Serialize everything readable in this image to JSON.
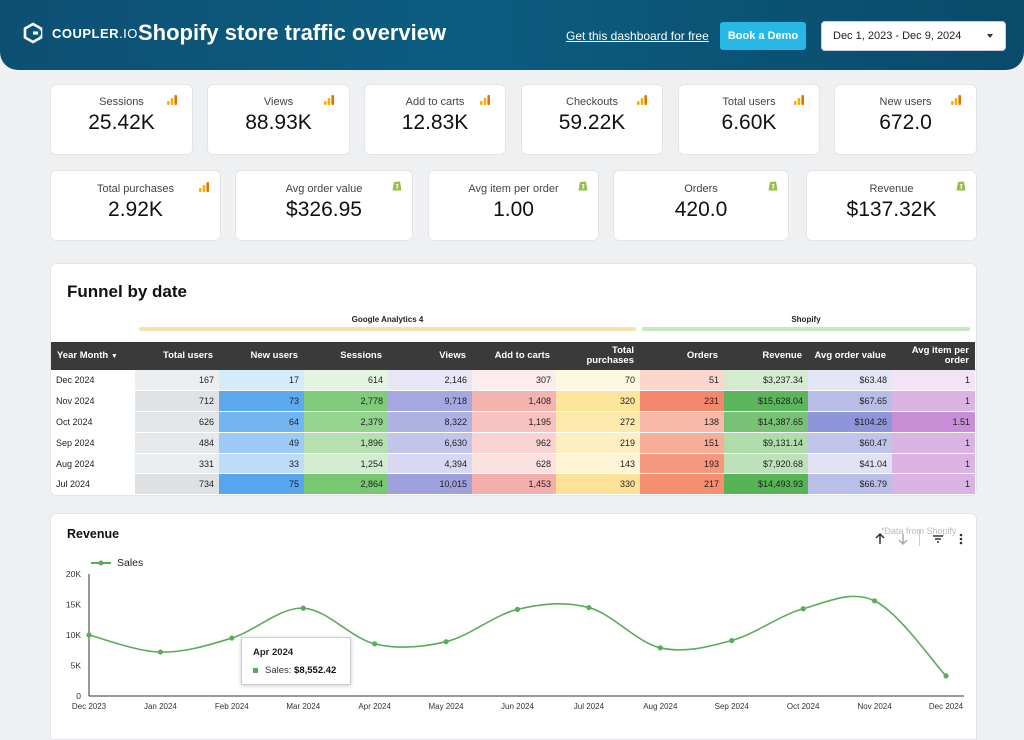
{
  "header": {
    "logo_brand": "COUPLER",
    "logo_suffix": ".IO",
    "title": "Shopify store traffic overview",
    "free_link": "Get this dashboard for free",
    "demo_button": "Book a Demo",
    "date_range": "Dec 1, 2023 - Dec 9, 2024"
  },
  "colors": {
    "accent": "#27b8e6",
    "header_bg": "#0b5d80",
    "line": "#5aab5a",
    "ga_bar": "#f5e3a8",
    "shopify_bar": "#c7e6c4"
  },
  "kpis_row1": [
    {
      "label": "Sessions",
      "value": "25.42K",
      "source": "ga-icon"
    },
    {
      "label": "Views",
      "value": "88.93K",
      "source": "ga-icon"
    },
    {
      "label": "Add to carts",
      "value": "12.83K",
      "source": "ga-icon"
    },
    {
      "label": "Checkouts",
      "value": "59.22K",
      "source": "ga-icon"
    },
    {
      "label": "Total users",
      "value": "6.60K",
      "source": "ga-icon"
    },
    {
      "label": "New users",
      "value": "672.0",
      "source": "ga-icon"
    }
  ],
  "kpis_row2": [
    {
      "label": "Total purchases",
      "value": "2.92K",
      "source": "ga-icon"
    },
    {
      "label": "Avg order value",
      "value": "$326.95",
      "source": "shopify-icon"
    },
    {
      "label": "Avg item per order",
      "value": "1.00",
      "source": "shopify-icon"
    },
    {
      "label": "Orders",
      "value": "420.0",
      "source": "shopify-icon"
    },
    {
      "label": "Revenue",
      "value": "$137.32K",
      "source": "shopify-icon"
    }
  ],
  "funnel": {
    "title": "Funnel by date",
    "group_ga": "Google Analytics 4",
    "group_shopify": "Shopify",
    "columns": [
      "Year Month",
      "Total users",
      "New users",
      "Sessions",
      "Views",
      "Add to carts",
      "Total purchases",
      "Orders",
      "Revenue",
      "Avg order value",
      "Avg item per order"
    ],
    "rows": [
      [
        "Dec 2024",
        "167",
        "17",
        "614",
        "2,146",
        "307",
        "70",
        "51",
        "$3,237.34",
        "$63.48",
        "1"
      ],
      [
        "Nov 2024",
        "712",
        "73",
        "2,778",
        "9,718",
        "1,408",
        "320",
        "231",
        "$15,628.04",
        "$67.65",
        "1"
      ],
      [
        "Oct 2024",
        "626",
        "64",
        "2,379",
        "8,322",
        "1,195",
        "272",
        "138",
        "$14,387.65",
        "$104.26",
        "1.51"
      ],
      [
        "Sep 2024",
        "484",
        "49",
        "1,896",
        "6,630",
        "962",
        "219",
        "151",
        "$9,131.14",
        "$60.47",
        "1"
      ],
      [
        "Aug 2024",
        "331",
        "33",
        "1,254",
        "4,394",
        "628",
        "143",
        "193",
        "$7,920.68",
        "$41.04",
        "1"
      ],
      [
        "Jul 2024",
        "734",
        "75",
        "2,864",
        "10,015",
        "1,453",
        "330",
        "217",
        "$14,493.93",
        "$66.79",
        "1"
      ]
    ],
    "cell_colors": [
      [
        "#ffffff",
        "#eceff1",
        "#d6ebfa",
        "#e4f4e2",
        "#e6e6f6",
        "#fceceb",
        "#fff8e0",
        "#fbd6cd",
        "#d3ecd0",
        "#e3e6f5",
        "#f4e3f5"
      ],
      [
        "#ffffff",
        "#dfe3e6",
        "#5da9ee",
        "#7fcb7a",
        "#a5a7e0",
        "#f5b3b0",
        "#fde59c",
        "#f5886c",
        "#5bb55a",
        "#b8bde8",
        "#dcb4e3"
      ],
      [
        "#ffffff",
        "#e2e6e9",
        "#73b5f0",
        "#93d48f",
        "#b0b2e4",
        "#f7c2bf",
        "#fde9ac",
        "#f9b9a8",
        "#79c175",
        "#8e95d9",
        "#c98ed8"
      ],
      [
        "#ffffff",
        "#e6e9ec",
        "#9ccaf4",
        "#b5e1b1",
        "#c3c4ea",
        "#f9d3d1",
        "#feefc3",
        "#f8ad99",
        "#aedcaa",
        "#c0c4ea",
        "#dcb4e3"
      ],
      [
        "#ffffff",
        "#eaedf0",
        "#bcdcf7",
        "#d2ecd0",
        "#d7d8f1",
        "#fbe1df",
        "#fff4d6",
        "#f6977e",
        "#bde2ba",
        "#e0e2f4",
        "#dcb4e3"
      ],
      [
        "#ffffff",
        "#dde1e4",
        "#56a5ed",
        "#77c773",
        "#9ea1de",
        "#f4aeab",
        "#fde39a",
        "#f68e72",
        "#58b357",
        "#babfe9",
        "#dcb4e3"
      ]
    ]
  },
  "revenue": {
    "title": "Revenue",
    "note": "*Data from Shopify",
    "tooltip": {
      "month": "Apr 2024",
      "series": "Sales:",
      "value": "$8,552.42"
    }
  },
  "chart_data": {
    "type": "line",
    "title": "Revenue",
    "series": [
      {
        "name": "Sales",
        "values": [
          10000,
          7200,
          9500,
          14400,
          8552,
          8900,
          14200,
          14500,
          7900,
          9100,
          14300,
          15600,
          3300
        ]
      }
    ],
    "x": [
      "Dec 2023",
      "Jan 2024",
      "Feb 2024",
      "Mar 2024",
      "Apr 2024",
      "May 2024",
      "Jun 2024",
      "Jul 2024",
      "Aug 2024",
      "Sep 2024",
      "Oct 2024",
      "Nov 2024",
      "Dec 2024"
    ],
    "y_ticks": [
      "0",
      "5K",
      "10K",
      "15K",
      "20K"
    ],
    "ylim": [
      0,
      20000
    ],
    "xlabel": "",
    "ylabel": "",
    "legend": "top-left"
  }
}
